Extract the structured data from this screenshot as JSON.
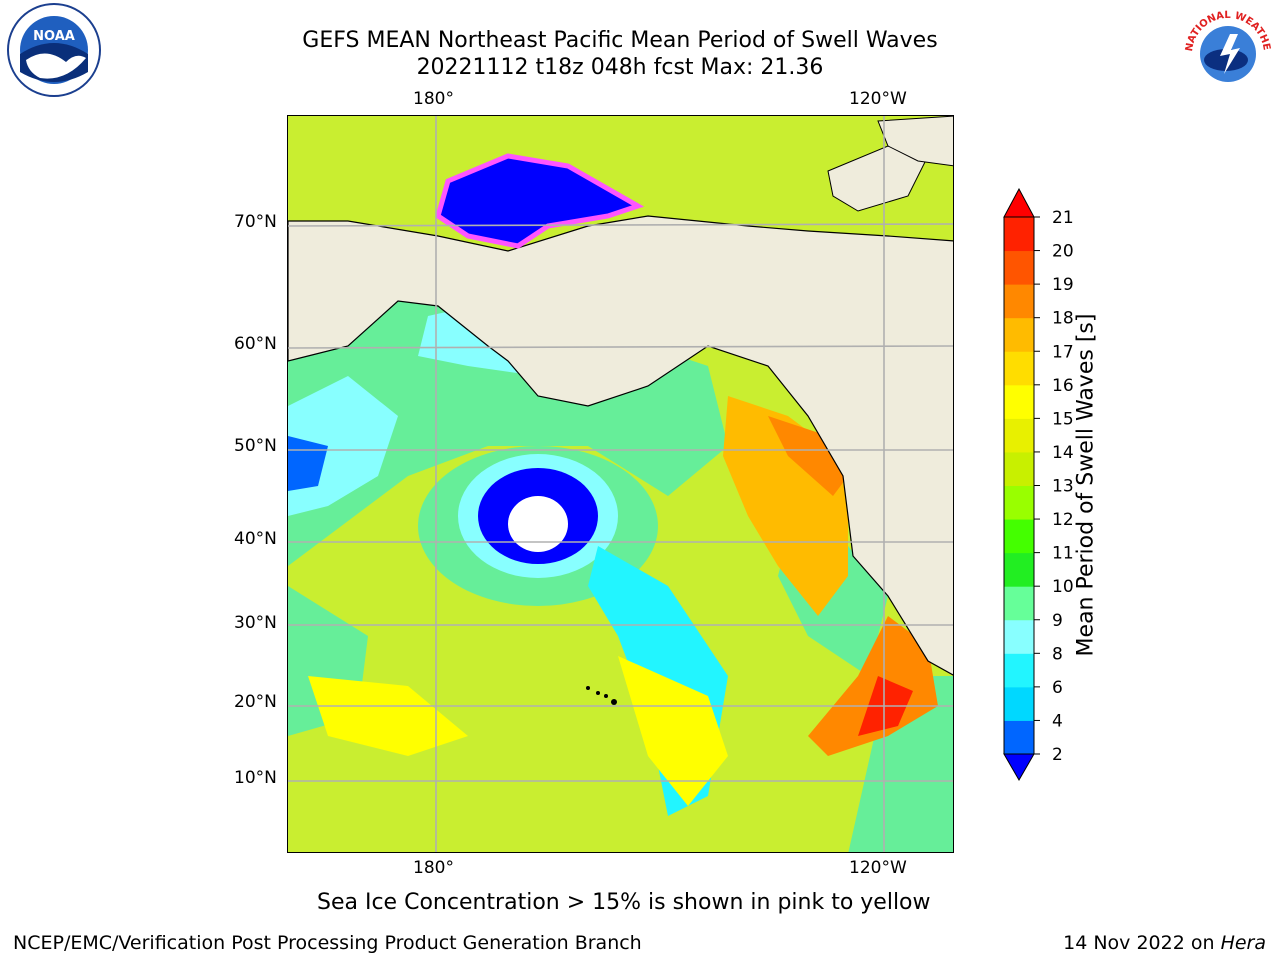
{
  "title": {
    "line1": "GEFS MEAN Northeast Pacific Mean Period of Swell Waves",
    "line2": "20221112 t18z 048h fcst   Max: 21.36"
  },
  "map": {
    "lon_labels_top": [
      "180°",
      "120°W"
    ],
    "lon_labels_bottom": [
      "180°",
      "120°W"
    ],
    "lat_labels": [
      "70°N",
      "60°N",
      "50°N",
      "40°N",
      "30°N",
      "20°N",
      "10°N"
    ],
    "land_color": "#efecdc",
    "grid_color": "#b0b0b0"
  },
  "colorbar": {
    "label": "Mean Period of Swell Waves [s]",
    "ticks": [
      "2",
      "4",
      "6",
      "8",
      "9",
      "10",
      "11",
      "12",
      "13",
      "14",
      "15",
      "16",
      "17",
      "18",
      "19",
      "20",
      "21"
    ],
    "colors": [
      "#0066ff",
      "#00d8ff",
      "#22f5ff",
      "#88ffff",
      "#66ff99",
      "#22ee22",
      "#44ff00",
      "#99ff00",
      "#c8f000",
      "#e8f000",
      "#ffff00",
      "#ffdd00",
      "#ffbb00",
      "#ff8800",
      "#ff5500",
      "#ff2200"
    ],
    "under_color": "#0000ff",
    "over_color": "#ff0000"
  },
  "caption": "Sea Ice Concentration > 15% is shown in pink to yellow",
  "footer": {
    "left": "NCEP/EMC/Verification Post Processing Product Generation Branch",
    "date": "14 Nov 2022 on ",
    "machine": "Hera"
  },
  "logos": {
    "noaa_text": "NOAA",
    "nws_text": "NATIONAL WEATHER SERVICE"
  }
}
